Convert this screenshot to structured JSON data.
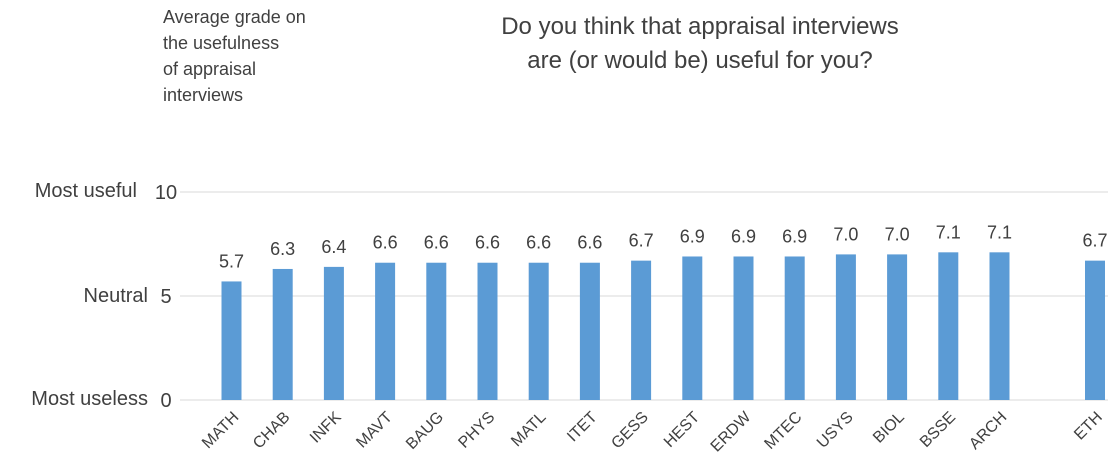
{
  "ylabel_lines": [
    "Average grade on",
    "the usefulness",
    "of appraisal",
    "interviews"
  ],
  "title_lines": [
    "Do you think that appraisal interviews",
    "are (or would be) useful for you?"
  ],
  "y_scale_labels": {
    "top": "Most useful",
    "middle": "Neutral",
    "bottom": "Most useless"
  },
  "colors": {
    "bar": "#5b9bd5",
    "grid": "#d9d9d9",
    "text": "#404040"
  },
  "chart_data": {
    "type": "bar",
    "title": "Do you think that appraisal interviews are (or would be) useful for you?",
    "ylabel": "Average grade on the usefulness of appraisal interviews",
    "xlabel": "",
    "ylim": [
      0,
      10
    ],
    "yticks": [
      0,
      5,
      10
    ],
    "grid": true,
    "categories": [
      "MATH",
      "CHAB",
      "INFK",
      "MAVT",
      "BAUG",
      "PHYS",
      "MATL",
      "ITET",
      "GESS",
      "HEST",
      "ERDW",
      "MTEC",
      "USYS",
      "BIOL",
      "BSSE",
      "ARCH",
      "ETH"
    ],
    "values": [
      5.7,
      6.3,
      6.4,
      6.6,
      6.6,
      6.6,
      6.6,
      6.6,
      6.7,
      6.9,
      6.9,
      6.9,
      7.0,
      7.0,
      7.1,
      7.1,
      6.7
    ],
    "value_labels": [
      "5.7",
      "6.3",
      "6.4",
      "6.6",
      "6.6",
      "6.6",
      "6.6",
      "6.6",
      "6.7",
      "6.9",
      "6.9",
      "6.9",
      "7.0",
      "7.0",
      "7.1",
      "7.1",
      "6.7"
    ]
  }
}
